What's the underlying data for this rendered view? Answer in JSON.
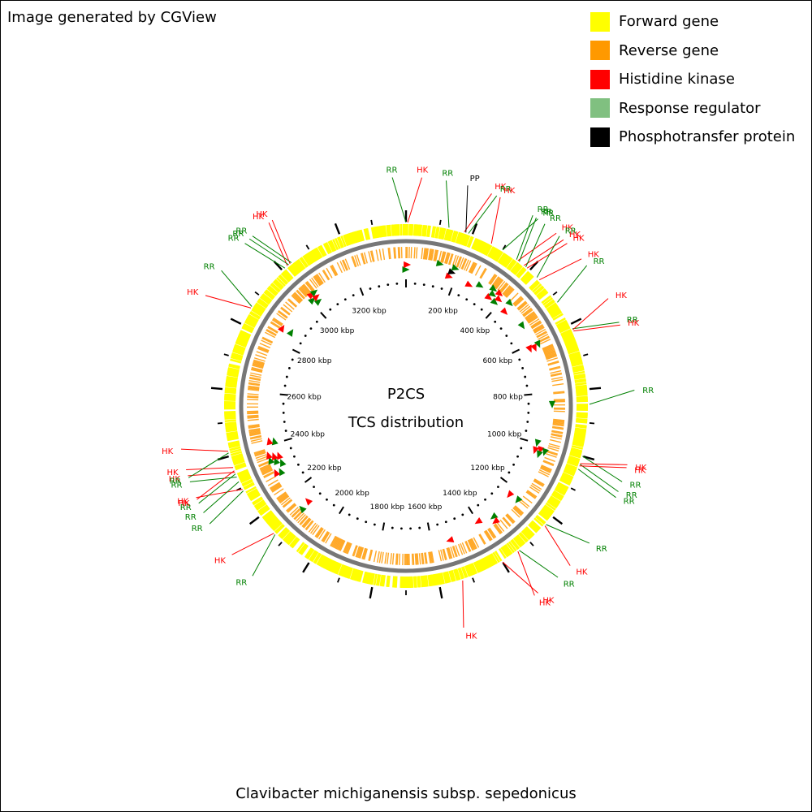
{
  "credit": "Image generated by CGView",
  "colors": {
    "forward": "#ffff00",
    "reverse": "#ff9900",
    "hk": "#ff0000",
    "rr": "#008000",
    "rr_legend": "#80c080",
    "pp": "#000000",
    "backbone": "#777777"
  },
  "legend": [
    {
      "label": "Forward gene",
      "color": "#ffff00"
    },
    {
      "label": "Reverse gene",
      "color": "#ff9900"
    },
    {
      "label": "Histidine kinase",
      "color": "#ff0000"
    },
    {
      "label": "Response regulator",
      "color": "#80c080"
    },
    {
      "label": "Phosphotransfer protein",
      "color": "#000000"
    }
  ],
  "center": {
    "line1": "P2CS",
    "line2": "TCS distribution"
  },
  "organism": "Clavibacter michiganensis subsp. sepedonicus",
  "genome_kbp": 3400,
  "ticks": [
    "200 kbp",
    "400 kbp",
    "600 kbp",
    "800 kbp",
    "1000 kbp",
    "1200 kbp",
    "1400 kbp",
    "1600 kbp",
    "1800 kbp",
    "2000 kbp",
    "2200 kbp",
    "2400 kbp",
    "2600 kbp",
    "2800 kbp",
    "3000 kbp",
    "3200 kbp"
  ],
  "features": [
    {
      "label": "RR",
      "type": "rr",
      "pos_kbp": 0
    },
    {
      "label": "HK",
      "type": "hk",
      "pos_kbp": 5
    },
    {
      "label": "RR",
      "type": "rr",
      "pos_kbp": 128
    },
    {
      "label": "HK",
      "type": "hk",
      "pos_kbp": 175
    },
    {
      "label": "PP",
      "type": "pp",
      "pos_kbp": 180
    },
    {
      "label": "RR",
      "type": "rr",
      "pos_kbp": 188
    },
    {
      "label": "HK",
      "type": "hk",
      "pos_kbp": 262
    },
    {
      "label": "RR",
      "type": "rr",
      "pos_kbp": 300
    },
    {
      "label": "RR",
      "type": "rr",
      "pos_kbp": 350
    },
    {
      "label": "HK",
      "type": "hk",
      "pos_kbp": 355
    },
    {
      "label": "RR",
      "type": "rr",
      "pos_kbp": 360
    },
    {
      "label": "HK",
      "type": "hk",
      "pos_kbp": 378
    },
    {
      "label": "RR",
      "type": "rr",
      "pos_kbp": 385
    },
    {
      "label": "HK",
      "type": "hk",
      "pos_kbp": 390
    },
    {
      "label": "RR",
      "type": "rr",
      "pos_kbp": 430
    },
    {
      "label": "HK",
      "type": "hk",
      "pos_kbp": 440
    },
    {
      "label": "RR",
      "type": "rr",
      "pos_kbp": 525
    },
    {
      "label": "RR",
      "type": "rr",
      "pos_kbp": 615
    },
    {
      "label": "HK",
      "type": "hk",
      "pos_kbp": 618
    },
    {
      "label": "HK",
      "type": "hk",
      "pos_kbp": 622
    },
    {
      "label": "RR",
      "type": "rr",
      "pos_kbp": 845
    },
    {
      "label": "RR",
      "type": "rr",
      "pos_kbp": 1000
    },
    {
      "label": "HK",
      "type": "hk",
      "pos_kbp": 1023
    },
    {
      "label": "RR",
      "type": "rr",
      "pos_kbp": 1025
    },
    {
      "label": "HK",
      "type": "hk",
      "pos_kbp": 1030
    },
    {
      "label": "RR",
      "type": "rr",
      "pos_kbp": 1040
    },
    {
      "label": "RR",
      "type": "rr",
      "pos_kbp": 1230
    },
    {
      "label": "HK",
      "type": "hk",
      "pos_kbp": 1235
    },
    {
      "label": "RR",
      "type": "rr",
      "pos_kbp": 1340
    },
    {
      "label": "HK",
      "type": "hk",
      "pos_kbp": 1345
    },
    {
      "label": "HK",
      "type": "hk",
      "pos_kbp": 1400
    },
    {
      "label": "HK",
      "type": "hk",
      "pos_kbp": 1530
    },
    {
      "label": "RR",
      "type": "rr",
      "pos_kbp": 2130
    },
    {
      "label": "HK",
      "type": "hk",
      "pos_kbp": 2135
    },
    {
      "label": "RR",
      "type": "rr",
      "pos_kbp": 2290
    },
    {
      "label": "HK",
      "type": "hk",
      "pos_kbp": 2295
    },
    {
      "label": "RR",
      "type": "rr",
      "pos_kbp": 2320
    },
    {
      "label": "RR",
      "type": "rr",
      "pos_kbp": 2335
    },
    {
      "label": "RR",
      "type": "rr",
      "pos_kbp": 2345
    },
    {
      "label": "HK",
      "type": "hk",
      "pos_kbp": 2350
    },
    {
      "label": "HK",
      "type": "hk",
      "pos_kbp": 2355
    },
    {
      "label": "HK",
      "type": "hk",
      "pos_kbp": 2365
    },
    {
      "label": "RR",
      "type": "rr",
      "pos_kbp": 2410
    },
    {
      "label": "HK",
      "type": "hk",
      "pos_kbp": 2415
    },
    {
      "label": "HK",
      "type": "hk",
      "pos_kbp": 2855
    },
    {
      "label": "RR",
      "type": "rr",
      "pos_kbp": 2860
    },
    {
      "label": "RR",
      "type": "rr",
      "pos_kbp": 3010
    },
    {
      "label": "HK",
      "type": "hk",
      "pos_kbp": 3020
    },
    {
      "label": "RR",
      "type": "rr",
      "pos_kbp": 3025
    },
    {
      "label": "HK",
      "type": "hk",
      "pos_kbp": 3030
    },
    {
      "label": "RR",
      "type": "rr",
      "pos_kbp": 3035
    }
  ]
}
